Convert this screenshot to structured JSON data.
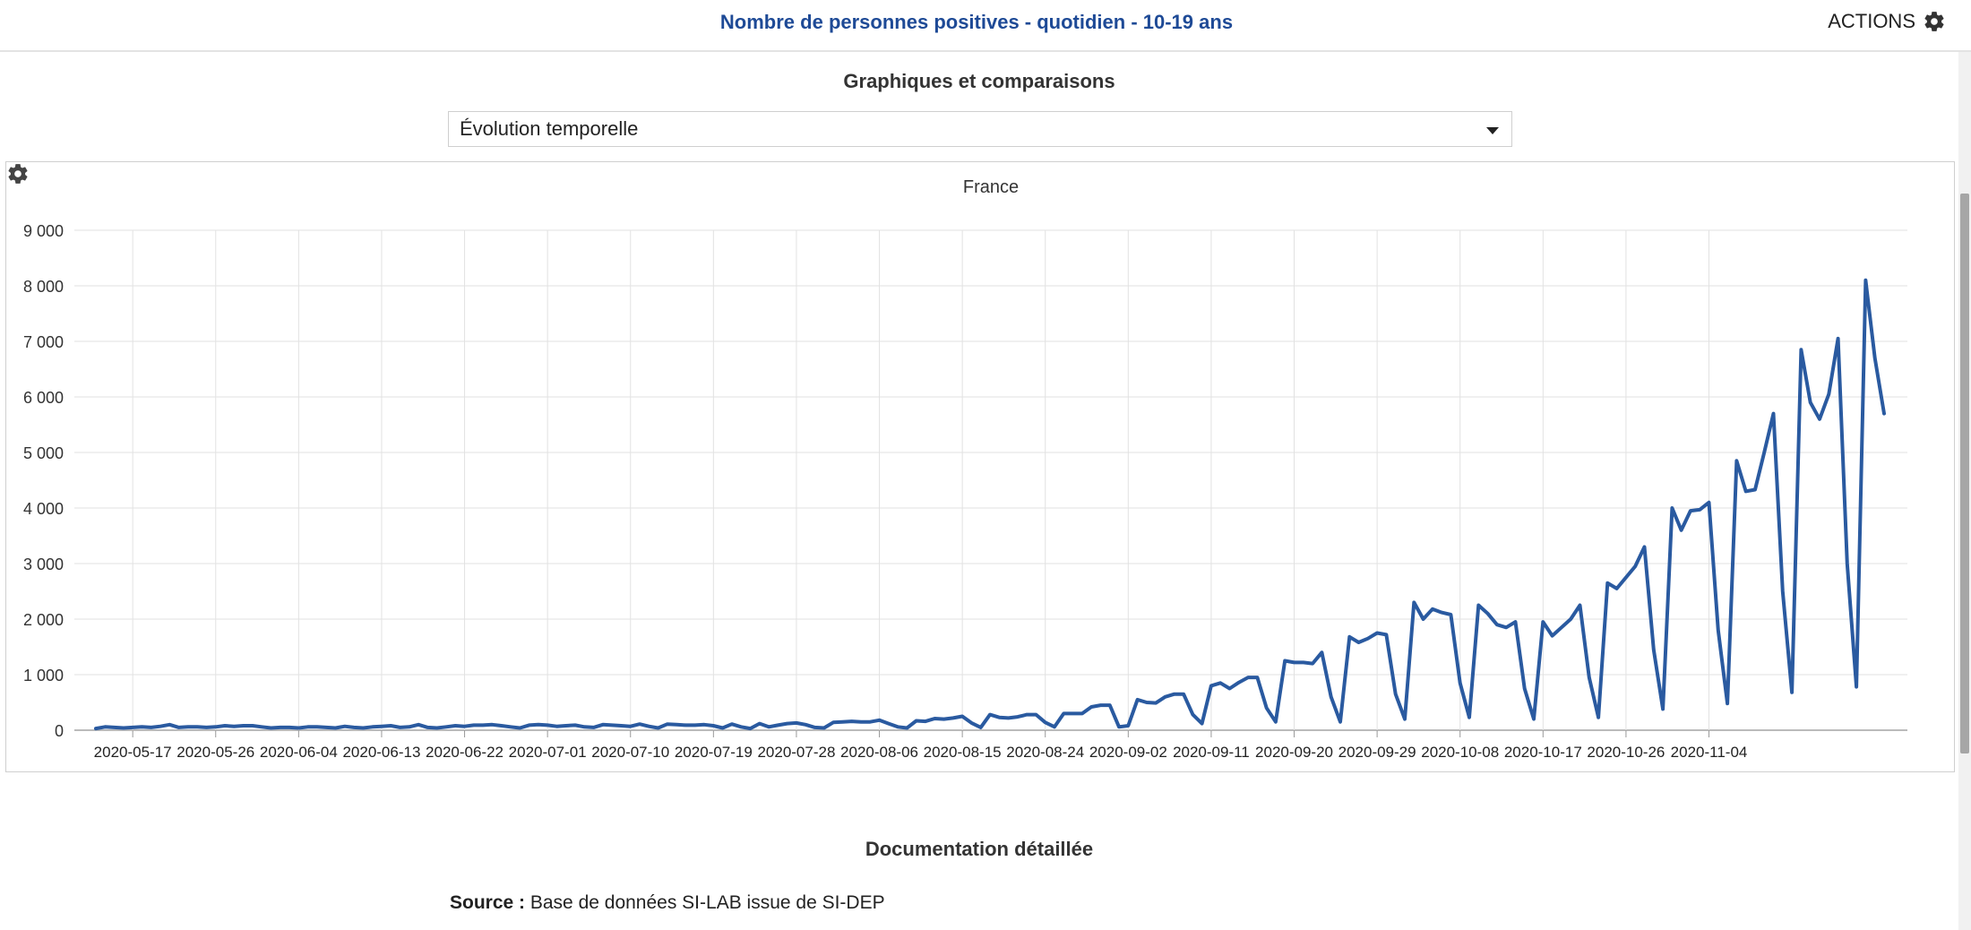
{
  "header": {
    "title": "Nombre de personnes positives - quotidien - 10-19 ans",
    "actions_label": "ACTIONS",
    "actions_icon": "gear-icon"
  },
  "section": {
    "title": "Graphiques et comparaisons"
  },
  "selector": {
    "selected": "Évolution temporelle"
  },
  "chart_data": {
    "type": "line",
    "title": "France",
    "xlabel": "",
    "ylabel": "",
    "grid": true,
    "ylim": [
      0,
      9000
    ],
    "yticks": [
      0,
      1000,
      2000,
      3000,
      4000,
      5000,
      6000,
      7000,
      8000,
      9000
    ],
    "ytick_labels": [
      "0",
      "1 000",
      "2 000",
      "3 000",
      "4 000",
      "5 000",
      "6 000",
      "7 000",
      "8 000",
      "9 000"
    ],
    "xticks": [
      "2020-05-17",
      "2020-05-26",
      "2020-06-04",
      "2020-06-13",
      "2020-06-22",
      "2020-07-01",
      "2020-07-10",
      "2020-07-19",
      "2020-07-28",
      "2020-08-06",
      "2020-08-15",
      "2020-08-24",
      "2020-09-02",
      "2020-09-11",
      "2020-09-20",
      "2020-09-29",
      "2020-10-08",
      "2020-10-17",
      "2020-10-26",
      "2020-11-04"
    ],
    "color": "#2a5aa0",
    "x_start": "2020-05-13",
    "x_end": "2020-11-04",
    "series": [
      {
        "values": [
          30,
          60,
          50,
          40,
          50,
          60,
          50,
          70,
          100,
          50,
          60,
          60,
          50,
          60,
          80,
          70,
          80,
          80,
          60,
          40,
          50,
          50,
          40,
          60,
          60,
          50,
          40,
          70,
          50,
          40,
          60,
          70,
          80,
          50,
          60,
          100,
          50,
          40,
          60,
          80,
          70,
          90,
          90,
          100,
          80,
          60,
          40,
          90,
          100,
          90,
          70,
          80,
          90,
          60,
          50,
          100,
          90,
          80,
          70,
          110,
          70,
          40,
          110,
          100,
          90,
          90,
          100,
          80,
          40,
          110,
          60,
          30,
          120,
          60,
          90,
          120,
          130,
          100,
          50,
          40,
          140,
          150,
          160,
          150,
          150,
          180,
          120,
          60,
          40,
          170,
          160,
          210,
          200,
          220,
          250,
          130,
          50,
          280,
          230,
          220,
          240,
          280,
          280,
          140,
          60,
          300,
          300,
          300,
          420,
          450,
          450,
          60,
          80,
          550,
          500,
          490,
          600,
          650,
          650,
          280,
          120,
          800,
          850,
          750,
          860,
          950,
          950,
          400,
          150,
          1250,
          1220,
          1220,
          1200,
          1400,
          600,
          150,
          1680,
          1580,
          1650,
          1750,
          1720,
          650,
          200,
          2300,
          2000,
          2180,
          2120,
          2080,
          850,
          230,
          2250,
          2100,
          1900,
          1850,
          1950,
          750,
          200,
          1950,
          1700,
          1850,
          2000,
          2250,
          950,
          230,
          2650,
          2550,
          2750,
          2950,
          3300,
          1450,
          380,
          4000,
          3600,
          3950,
          3970,
          4100,
          1800,
          480,
          4850,
          4300,
          4330,
          5000,
          5700,
          2500,
          680,
          6850,
          5900,
          5600,
          6050,
          7050,
          3000,
          780,
          8100,
          6700,
          5700
        ]
      }
    ]
  },
  "documentation": {
    "title": "Documentation détaillée",
    "source_label": "Source :",
    "source_text": "Base de données SI-LAB issue de SI-DEP"
  }
}
